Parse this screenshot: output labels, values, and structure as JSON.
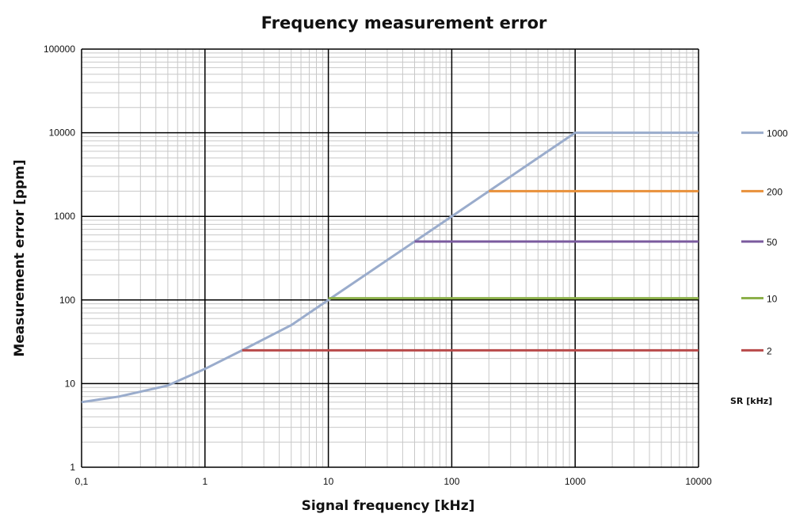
{
  "chart_data": {
    "type": "line",
    "title": "Frequency measurement error",
    "xlabel": "Signal frequency [kHz]",
    "ylabel": "Measurement error [ppm]",
    "xscale": "log",
    "yscale": "log",
    "xlim": [
      0.1,
      10000
    ],
    "ylim": [
      1,
      100000
    ],
    "x_ticks": [
      0.1,
      1,
      10,
      100,
      1000,
      10000
    ],
    "x_tick_labels": [
      "0,1",
      "1",
      "10",
      "100",
      "1000",
      "10000"
    ],
    "y_ticks": [
      1,
      10,
      100,
      1000,
      10000,
      100000
    ],
    "y_tick_labels": [
      "1",
      "10",
      "100",
      "1000",
      "10000",
      "100000"
    ],
    "grid": true,
    "legend_position": "right",
    "legend_title": "SR  [kHz]",
    "series": [
      {
        "name": "1000",
        "color": "#9aaccc",
        "x": [
          0.1,
          0.2,
          0.5,
          1,
          2,
          5,
          10,
          20,
          50,
          100,
          200,
          500,
          1000,
          10000
        ],
        "y": [
          6,
          7,
          9.5,
          15,
          25,
          50,
          100,
          200,
          500,
          1000,
          2000,
          5000,
          10000,
          10000
        ]
      },
      {
        "name": "200",
        "color": "#e8903a",
        "x": [
          200,
          10000
        ],
        "y": [
          2000,
          2000
        ]
      },
      {
        "name": "50",
        "color": "#7a5a9e",
        "x": [
          50,
          10000
        ],
        "y": [
          500,
          500
        ]
      },
      {
        "name": "10",
        "color": "#8cb04a",
        "x": [
          10,
          10000
        ],
        "y": [
          105,
          105
        ]
      },
      {
        "name": "2",
        "color": "#b84a4a",
        "x": [
          2,
          10000
        ],
        "y": [
          25,
          25
        ]
      }
    ]
  }
}
